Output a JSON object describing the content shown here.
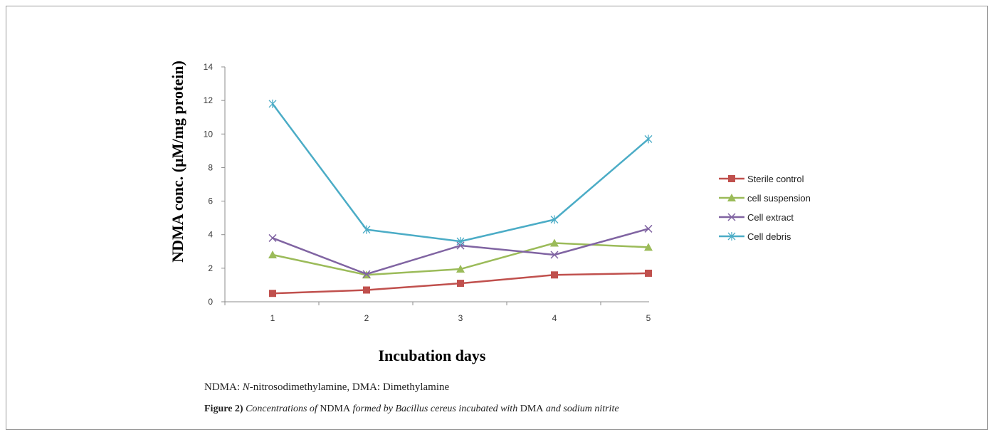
{
  "chart_data": {
    "type": "line",
    "x": [
      1,
      2,
      3,
      4,
      5
    ],
    "categories": [
      "1",
      "2",
      "3",
      "4",
      "5"
    ],
    "ylim": [
      0,
      14
    ],
    "yticks": [
      0,
      2,
      4,
      6,
      8,
      10,
      12,
      14
    ],
    "xlabel": "Incubation days",
    "ylabel": "NDMA conc. (µM/mg protein)",
    "legend_position": "right",
    "grid": false,
    "series": [
      {
        "name": "Sterile control",
        "color": "#c0504d",
        "marker": "square",
        "values": [
          0.5,
          0.7,
          1.1,
          1.6,
          1.7
        ]
      },
      {
        "name": "cell suspension",
        "color": "#9bbb59",
        "marker": "triangle",
        "values": [
          2.8,
          1.6,
          1.95,
          3.5,
          3.25
        ]
      },
      {
        "name": "Cell extract",
        "color": "#8064a2",
        "marker": "x",
        "values": [
          3.8,
          1.65,
          3.35,
          2.8,
          4.35
        ]
      },
      {
        "name": "Cell debris",
        "color": "#4bacc6",
        "marker": "star",
        "values": [
          11.8,
          4.3,
          3.6,
          4.9,
          9.7
        ]
      }
    ]
  },
  "note": {
    "prefix": "NDMA: ",
    "italic": "N",
    "rest": "-nitrosodimethylamine, DMA: Dimethylamine"
  },
  "caption": {
    "label": "Figure 2)",
    "part1": " Concentrations of ",
    "part2": "NDMA",
    "part3": " formed by Bacillus cereus incubated with ",
    "part4": "DMA",
    "part5": " and sodium nitrite"
  }
}
